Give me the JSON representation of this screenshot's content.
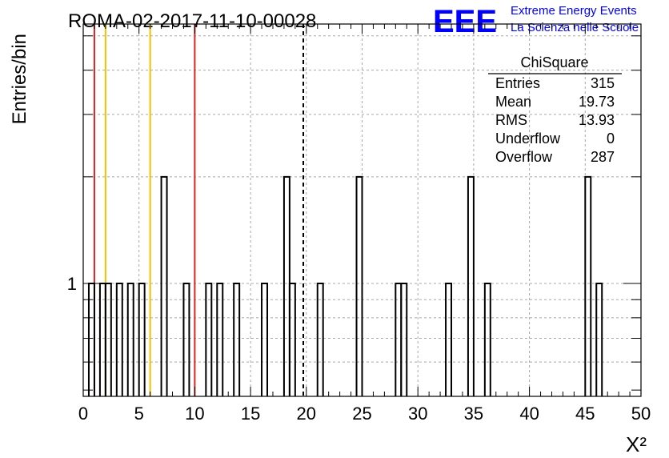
{
  "header": {
    "run_title": "ROMA-02-2017-11-10-00028",
    "logo_text": "EEE",
    "org_line1": "Extreme Energy Events",
    "org_line2": "La Scienza nelle Scuole",
    "brand_color": "#0000ff"
  },
  "chart_data": {
    "type": "bar",
    "style": "step-histogram",
    "xlabel": "X²",
    "ylabel": "Entries/bin",
    "xlim": [
      0,
      50
    ],
    "y_scale": "log",
    "ylim": [
      0.48,
      5.4
    ],
    "bin_width": 0.5,
    "x_ticks": [
      0,
      5,
      10,
      15,
      20,
      25,
      30,
      35,
      40,
      45,
      50
    ],
    "y_tick_labels": [
      {
        "value": 1,
        "label": "1"
      }
    ],
    "grid": true,
    "bins": [
      {
        "x": 0.75,
        "value": 1
      },
      {
        "x": 1.75,
        "value": 1
      },
      {
        "x": 2.25,
        "value": 1
      },
      {
        "x": 3.25,
        "value": 1
      },
      {
        "x": 4.25,
        "value": 1
      },
      {
        "x": 5.25,
        "value": 1
      },
      {
        "x": 7.25,
        "value": 2
      },
      {
        "x": 9.25,
        "value": 1
      },
      {
        "x": 11.25,
        "value": 1
      },
      {
        "x": 12.25,
        "value": 1
      },
      {
        "x": 13.75,
        "value": 1
      },
      {
        "x": 16.25,
        "value": 1
      },
      {
        "x": 18.25,
        "value": 2
      },
      {
        "x": 18.75,
        "value": 1
      },
      {
        "x": 21.25,
        "value": 1
      },
      {
        "x": 24.75,
        "value": 2
      },
      {
        "x": 28.25,
        "value": 1
      },
      {
        "x": 28.75,
        "value": 1
      },
      {
        "x": 32.75,
        "value": 1
      },
      {
        "x": 34.75,
        "value": 2
      },
      {
        "x": 36.25,
        "value": 1
      },
      {
        "x": 45.25,
        "value": 2
      },
      {
        "x": 46.25,
        "value": 1
      }
    ],
    "vertical_lines": [
      {
        "x": 1,
        "color": "#dd2222",
        "style": "solid"
      },
      {
        "x": 2,
        "color": "#f2c200",
        "style": "solid"
      },
      {
        "x": 6,
        "color": "#f2c200",
        "style": "solid"
      },
      {
        "x": 10,
        "color": "#dd2222",
        "style": "solid"
      },
      {
        "x": 19.73,
        "color": "#000000",
        "style": "dashed"
      }
    ],
    "stats_box": {
      "title": "ChiSquare",
      "rows": [
        {
          "label": "Entries",
          "value": "315"
        },
        {
          "label": "Mean",
          "value": "19.73"
        },
        {
          "label": "RMS",
          "value": "13.93"
        },
        {
          "label": "Underflow",
          "value": "0"
        },
        {
          "label": "Overflow",
          "value": "287"
        }
      ]
    }
  }
}
